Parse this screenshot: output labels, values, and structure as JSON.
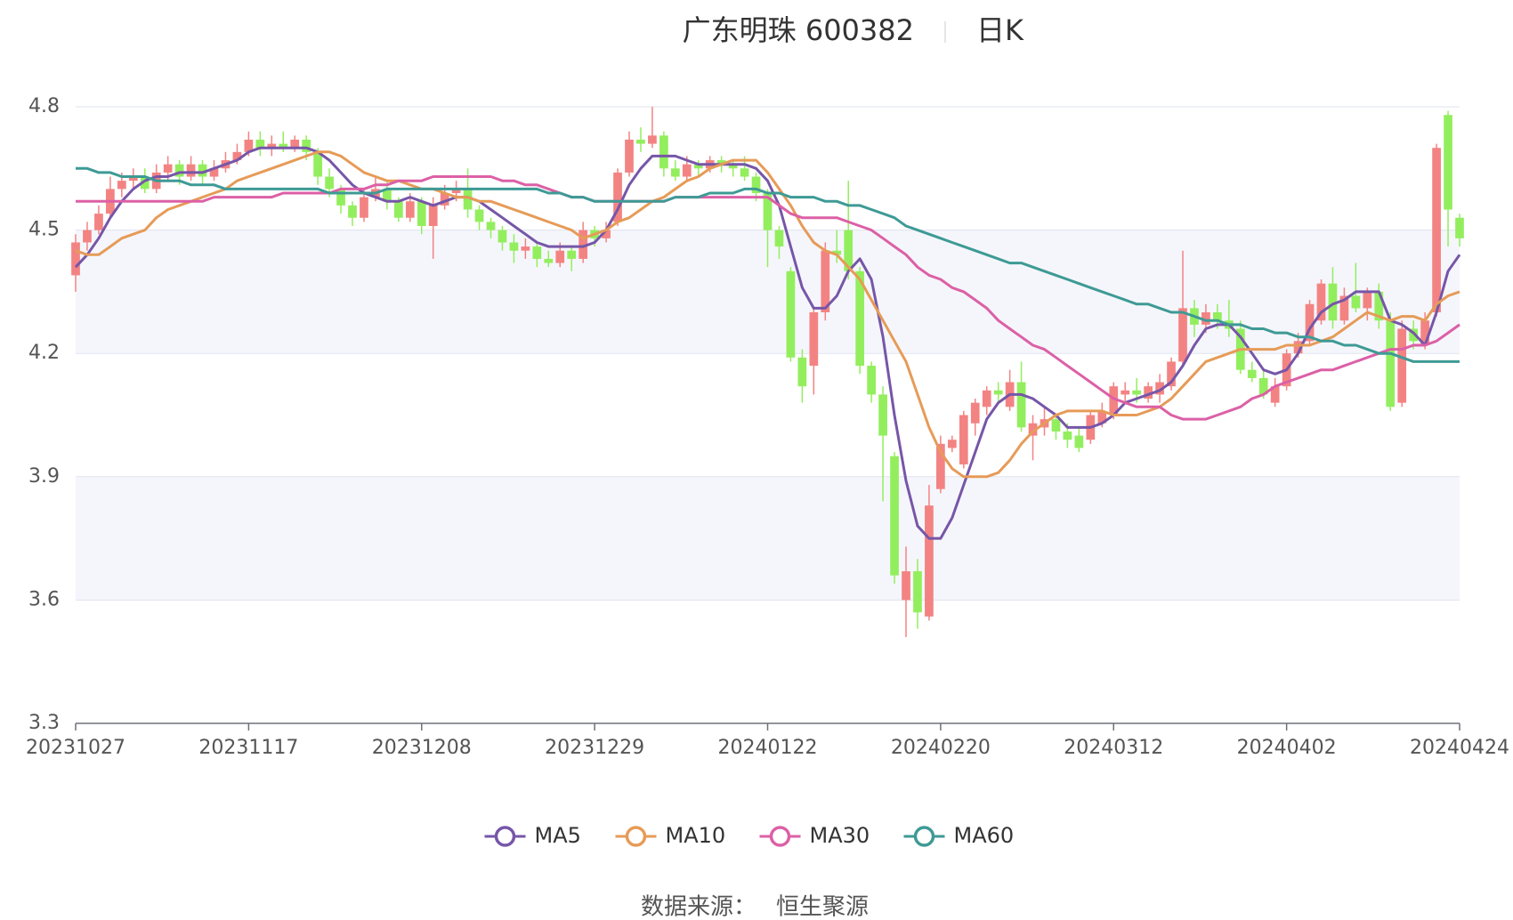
{
  "chart_data": {
    "type": "candlestick",
    "title": "广东明珠 600382",
    "subtitle": "日K",
    "source_label": "数据来源：",
    "source": "恒生聚源",
    "up_color": "#f38383",
    "down_color": "#93ee5e",
    "legend": "bottom",
    "ylim": [
      3.3,
      4.8
    ],
    "yticks": [
      3.3,
      3.6,
      3.9,
      4.2,
      4.5,
      4.8
    ],
    "grid": true,
    "categories": [
      "20231027",
      null,
      null,
      null,
      null,
      null,
      null,
      null,
      null,
      null,
      null,
      null,
      null,
      null,
      null,
      "20231117",
      null,
      null,
      null,
      null,
      null,
      null,
      null,
      null,
      null,
      null,
      null,
      null,
      null,
      null,
      "20231208",
      null,
      null,
      null,
      null,
      null,
      null,
      null,
      null,
      null,
      null,
      null,
      null,
      null,
      null,
      "20231229",
      null,
      null,
      null,
      null,
      null,
      null,
      null,
      null,
      null,
      null,
      null,
      null,
      null,
      null,
      "20240122",
      null,
      null,
      null,
      null,
      null,
      null,
      null,
      null,
      null,
      null,
      null,
      null,
      null,
      null,
      "20240220",
      null,
      null,
      null,
      null,
      null,
      null,
      null,
      null,
      null,
      null,
      null,
      null,
      null,
      null,
      "20240312",
      null,
      null,
      null,
      null,
      null,
      null,
      null,
      null,
      null,
      null,
      null,
      null,
      null,
      null,
      "20240402",
      null,
      null,
      null,
      null,
      null,
      null,
      null,
      null,
      null,
      null,
      null,
      null,
      null,
      null,
      "20240424"
    ],
    "ohlc": [
      [
        4.39,
        4.49,
        4.35,
        4.47
      ],
      [
        4.47,
        4.52,
        4.45,
        4.5
      ],
      [
        4.5,
        4.56,
        4.49,
        4.54
      ],
      [
        4.54,
        4.63,
        4.53,
        4.6
      ],
      [
        4.6,
        4.64,
        4.58,
        4.62
      ],
      [
        4.62,
        4.65,
        4.6,
        4.63
      ],
      [
        4.63,
        4.65,
        4.59,
        4.6
      ],
      [
        4.6,
        4.66,
        4.59,
        4.64
      ],
      [
        4.64,
        4.68,
        4.62,
        4.66
      ],
      [
        4.66,
        4.67,
        4.61,
        4.63
      ],
      [
        4.63,
        4.68,
        4.62,
        4.66
      ],
      [
        4.66,
        4.67,
        4.61,
        4.63
      ],
      [
        4.63,
        4.67,
        4.62,
        4.65
      ],
      [
        4.65,
        4.69,
        4.64,
        4.67
      ],
      [
        4.67,
        4.71,
        4.66,
        4.69
      ],
      [
        4.69,
        4.74,
        4.68,
        4.72
      ],
      [
        4.72,
        4.74,
        4.68,
        4.7
      ],
      [
        4.7,
        4.73,
        4.68,
        4.71
      ],
      [
        4.71,
        4.74,
        4.69,
        4.7
      ],
      [
        4.7,
        4.73,
        4.69,
        4.72
      ],
      [
        4.72,
        4.73,
        4.67,
        4.69
      ],
      [
        4.69,
        4.7,
        4.61,
        4.63
      ],
      [
        4.63,
        4.65,
        4.58,
        4.6
      ],
      [
        4.6,
        4.61,
        4.54,
        4.56
      ],
      [
        4.56,
        4.57,
        4.51,
        4.53
      ],
      [
        4.53,
        4.6,
        4.52,
        4.58
      ],
      [
        4.58,
        4.63,
        4.57,
        4.6
      ],
      [
        4.6,
        4.62,
        4.55,
        4.57
      ],
      [
        4.57,
        4.58,
        4.52,
        4.53
      ],
      [
        4.53,
        4.59,
        4.52,
        4.57
      ],
      [
        4.57,
        4.58,
        4.49,
        4.51
      ],
      [
        4.51,
        4.58,
        4.43,
        4.56
      ],
      [
        4.56,
        4.61,
        4.55,
        4.59
      ],
      [
        4.59,
        4.62,
        4.57,
        4.6
      ],
      [
        4.6,
        4.65,
        4.53,
        4.55
      ],
      [
        4.55,
        4.56,
        4.5,
        4.52
      ],
      [
        4.52,
        4.53,
        4.48,
        4.5
      ],
      [
        4.5,
        4.51,
        4.45,
        4.47
      ],
      [
        4.47,
        4.49,
        4.42,
        4.45
      ],
      [
        4.45,
        4.48,
        4.43,
        4.46
      ],
      [
        4.46,
        4.47,
        4.41,
        4.43
      ],
      [
        4.43,
        4.45,
        4.41,
        4.42
      ],
      [
        4.42,
        4.47,
        4.41,
        4.45
      ],
      [
        4.45,
        4.46,
        4.4,
        4.43
      ],
      [
        4.43,
        4.52,
        4.42,
        4.5
      ],
      [
        4.5,
        4.51,
        4.46,
        4.48
      ],
      [
        4.48,
        4.52,
        4.47,
        4.5
      ],
      [
        4.52,
        4.65,
        4.51,
        4.64
      ],
      [
        4.64,
        4.74,
        4.63,
        4.72
      ],
      [
        4.72,
        4.75,
        4.69,
        4.71
      ],
      [
        4.71,
        4.8,
        4.7,
        4.73
      ],
      [
        4.73,
        4.74,
        4.63,
        4.65
      ],
      [
        4.65,
        4.67,
        4.62,
        4.63
      ],
      [
        4.63,
        4.68,
        4.62,
        4.66
      ],
      [
        4.66,
        4.67,
        4.63,
        4.65
      ],
      [
        4.65,
        4.68,
        4.64,
        4.67
      ],
      [
        4.67,
        4.68,
        4.64,
        4.66
      ],
      [
        4.66,
        4.67,
        4.63,
        4.65
      ],
      [
        4.65,
        4.68,
        4.62,
        4.63
      ],
      [
        4.63,
        4.64,
        4.57,
        4.59
      ],
      [
        4.59,
        4.6,
        4.41,
        4.5
      ],
      [
        4.5,
        4.51,
        4.43,
        4.46
      ],
      [
        4.4,
        4.41,
        4.18,
        4.19
      ],
      [
        4.19,
        4.21,
        4.08,
        4.12
      ],
      [
        4.17,
        4.31,
        4.1,
        4.3
      ],
      [
        4.3,
        4.47,
        4.28,
        4.45
      ],
      [
        4.45,
        4.5,
        4.42,
        4.44
      ],
      [
        4.5,
        4.62,
        4.38,
        4.4
      ],
      [
        4.4,
        4.41,
        4.15,
        4.17
      ],
      [
        4.17,
        4.18,
        4.08,
        4.1
      ],
      [
        4.1,
        4.12,
        3.84,
        4.0
      ],
      [
        3.95,
        3.96,
        3.64,
        3.66
      ],
      [
        3.6,
        3.73,
        3.51,
        3.67
      ],
      [
        3.67,
        3.7,
        3.53,
        3.57
      ],
      [
        3.56,
        3.88,
        3.55,
        3.83
      ],
      [
        3.87,
        4.0,
        3.86,
        3.98
      ],
      [
        3.97,
        4.0,
        3.96,
        3.99
      ],
      [
        3.93,
        4.06,
        3.92,
        4.05
      ],
      [
        4.03,
        4.09,
        4.0,
        4.08
      ],
      [
        4.07,
        4.12,
        4.05,
        4.11
      ],
      [
        4.11,
        4.13,
        4.08,
        4.1
      ],
      [
        4.07,
        4.16,
        4.06,
        4.13
      ],
      [
        4.13,
        4.18,
        4.01,
        4.02
      ],
      [
        4.0,
        4.05,
        3.94,
        4.03
      ],
      [
        4.02,
        4.07,
        4.0,
        4.04
      ],
      [
        4.04,
        4.05,
        3.99,
        4.01
      ],
      [
        4.01,
        4.03,
        3.97,
        3.99
      ],
      [
        4.0,
        4.02,
        3.96,
        3.97
      ],
      [
        3.99,
        4.06,
        3.98,
        4.05
      ],
      [
        4.03,
        4.08,
        4.02,
        4.06
      ],
      [
        4.05,
        4.13,
        4.04,
        4.12
      ],
      [
        4.1,
        4.13,
        4.08,
        4.11
      ],
      [
        4.11,
        4.14,
        4.08,
        4.1
      ],
      [
        4.09,
        4.13,
        4.08,
        4.12
      ],
      [
        4.1,
        4.15,
        4.08,
        4.13
      ],
      [
        4.12,
        4.19,
        4.11,
        4.18
      ],
      [
        4.18,
        4.45,
        4.17,
        4.31
      ],
      [
        4.31,
        4.33,
        4.24,
        4.27
      ],
      [
        4.27,
        4.32,
        4.25,
        4.3
      ],
      [
        4.3,
        4.32,
        4.26,
        4.28
      ],
      [
        4.28,
        4.33,
        4.24,
        4.26
      ],
      [
        4.26,
        4.28,
        4.15,
        4.16
      ],
      [
        4.16,
        4.18,
        4.13,
        4.14
      ],
      [
        4.14,
        4.16,
        4.09,
        4.1
      ],
      [
        4.08,
        4.14,
        4.07,
        4.12
      ],
      [
        4.12,
        4.21,
        4.11,
        4.2
      ],
      [
        4.2,
        4.25,
        4.19,
        4.23
      ],
      [
        4.23,
        4.33,
        4.22,
        4.32
      ],
      [
        4.28,
        4.38,
        4.27,
        4.37
      ],
      [
        4.37,
        4.41,
        4.26,
        4.28
      ],
      [
        4.28,
        4.36,
        4.27,
        4.34
      ],
      [
        4.34,
        4.42,
        4.3,
        4.31
      ],
      [
        4.31,
        4.36,
        4.28,
        4.35
      ],
      [
        4.35,
        4.37,
        4.26,
        4.28
      ],
      [
        4.28,
        4.3,
        4.06,
        4.07
      ],
      [
        4.08,
        4.28,
        4.07,
        4.26
      ],
      [
        4.26,
        4.28,
        4.21,
        4.23
      ],
      [
        4.22,
        4.3,
        4.21,
        4.28
      ],
      [
        4.3,
        4.71,
        4.29,
        4.7
      ],
      [
        4.78,
        4.79,
        4.46,
        4.55
      ],
      [
        4.53,
        4.54,
        4.46,
        4.48
      ]
    ],
    "series": [
      {
        "name": "MA5",
        "color": "#7656a8",
        "values": [
          4.41,
          4.44,
          4.48,
          4.53,
          4.57,
          4.6,
          4.62,
          4.63,
          4.63,
          4.64,
          4.64,
          4.64,
          4.65,
          4.66,
          4.67,
          4.69,
          4.7,
          4.7,
          4.7,
          4.7,
          4.7,
          4.69,
          4.67,
          4.64,
          4.61,
          4.59,
          4.58,
          4.57,
          4.57,
          4.58,
          4.57,
          4.56,
          4.57,
          4.58,
          4.58,
          4.57,
          4.55,
          4.53,
          4.51,
          4.49,
          4.47,
          4.46,
          4.46,
          4.46,
          4.46,
          4.47,
          4.5,
          4.55,
          4.61,
          4.65,
          4.68,
          4.68,
          4.68,
          4.67,
          4.66,
          4.66,
          4.66,
          4.66,
          4.66,
          4.65,
          4.62,
          4.56,
          4.46,
          4.36,
          4.31,
          4.31,
          4.34,
          4.4,
          4.43,
          4.38,
          4.24,
          4.05,
          3.89,
          3.78,
          3.75,
          3.75,
          3.8,
          3.88,
          3.96,
          4.04,
          4.08,
          4.1,
          4.1,
          4.09,
          4.07,
          4.05,
          4.02,
          4.02,
          4.02,
          4.03,
          4.05,
          4.08,
          4.09,
          4.1,
          4.11,
          4.13,
          4.17,
          4.22,
          4.26,
          4.27,
          4.27,
          4.24,
          4.2,
          4.16,
          4.15,
          4.16,
          4.2,
          4.26,
          4.3,
          4.32,
          4.33,
          4.35,
          4.35,
          4.35,
          4.28,
          4.27,
          4.25,
          4.22,
          4.3,
          4.4,
          4.44
        ]
      },
      {
        "name": "MA10",
        "color": "#e69b58",
        "values": [
          4.45,
          4.44,
          4.44,
          4.46,
          4.48,
          4.49,
          4.5,
          4.53,
          4.55,
          4.56,
          4.57,
          4.58,
          4.59,
          4.6,
          4.62,
          4.63,
          4.64,
          4.65,
          4.66,
          4.67,
          4.68,
          4.69,
          4.69,
          4.68,
          4.66,
          4.64,
          4.63,
          4.62,
          4.62,
          4.61,
          4.6,
          4.6,
          4.59,
          4.58,
          4.58,
          4.57,
          4.57,
          4.56,
          4.55,
          4.54,
          4.53,
          4.52,
          4.51,
          4.5,
          4.48,
          4.49,
          4.5,
          4.52,
          4.53,
          4.55,
          4.57,
          4.58,
          4.6,
          4.62,
          4.63,
          4.65,
          4.66,
          4.67,
          4.67,
          4.67,
          4.64,
          4.6,
          4.56,
          4.51,
          4.47,
          4.45,
          4.44,
          4.41,
          4.38,
          4.33,
          4.28,
          4.23,
          4.18,
          4.1,
          4.02,
          3.96,
          3.92,
          3.9,
          3.9,
          3.9,
          3.91,
          3.94,
          3.98,
          4.01,
          4.03,
          4.05,
          4.06,
          4.06,
          4.06,
          4.06,
          4.05,
          4.05,
          4.05,
          4.06,
          4.07,
          4.09,
          4.12,
          4.15,
          4.18,
          4.19,
          4.2,
          4.21,
          4.21,
          4.21,
          4.21,
          4.22,
          4.22,
          4.22,
          4.23,
          4.24,
          4.26,
          4.28,
          4.3,
          4.29,
          4.28,
          4.29,
          4.29,
          4.28,
          4.32,
          4.34,
          4.35
        ]
      },
      {
        "name": "MA30",
        "color": "#dc60a6",
        "values": [
          4.57,
          4.57,
          4.57,
          4.57,
          4.57,
          4.57,
          4.57,
          4.57,
          4.57,
          4.57,
          4.57,
          4.57,
          4.58,
          4.58,
          4.58,
          4.58,
          4.58,
          4.58,
          4.59,
          4.59,
          4.59,
          4.59,
          4.59,
          4.6,
          4.6,
          4.6,
          4.61,
          4.61,
          4.62,
          4.62,
          4.62,
          4.63,
          4.63,
          4.63,
          4.63,
          4.63,
          4.63,
          4.62,
          4.62,
          4.61,
          4.61,
          4.6,
          4.59,
          4.58,
          4.58,
          4.57,
          4.57,
          4.57,
          4.57,
          4.57,
          4.57,
          4.57,
          4.58,
          4.58,
          4.58,
          4.58,
          4.58,
          4.58,
          4.58,
          4.58,
          4.58,
          4.56,
          4.54,
          4.53,
          4.53,
          4.53,
          4.53,
          4.52,
          4.51,
          4.5,
          4.48,
          4.46,
          4.44,
          4.41,
          4.39,
          4.38,
          4.36,
          4.35,
          4.33,
          4.31,
          4.28,
          4.26,
          4.24,
          4.22,
          4.21,
          4.19,
          4.17,
          4.15,
          4.13,
          4.11,
          4.09,
          4.08,
          4.07,
          4.07,
          4.07,
          4.05,
          4.04,
          4.04,
          4.04,
          4.05,
          4.06,
          4.07,
          4.09,
          4.1,
          4.12,
          4.13,
          4.14,
          4.15,
          4.16,
          4.16,
          4.17,
          4.18,
          4.19,
          4.2,
          4.21,
          4.21,
          4.22,
          4.22,
          4.23,
          4.25,
          4.27
        ]
      },
      {
        "name": "MA60",
        "color": "#3e9a95",
        "values": [
          4.65,
          4.65,
          4.64,
          4.64,
          4.63,
          4.63,
          4.63,
          4.62,
          4.62,
          4.62,
          4.61,
          4.61,
          4.61,
          4.6,
          4.6,
          4.6,
          4.6,
          4.6,
          4.6,
          4.6,
          4.6,
          4.6,
          4.59,
          4.59,
          4.59,
          4.59,
          4.59,
          4.6,
          4.6,
          4.6,
          4.6,
          4.6,
          4.6,
          4.6,
          4.6,
          4.6,
          4.6,
          4.6,
          4.6,
          4.6,
          4.6,
          4.59,
          4.59,
          4.58,
          4.58,
          4.57,
          4.57,
          4.57,
          4.57,
          4.57,
          4.57,
          4.57,
          4.58,
          4.58,
          4.58,
          4.59,
          4.59,
          4.59,
          4.6,
          4.6,
          4.59,
          4.59,
          4.58,
          4.58,
          4.58,
          4.57,
          4.57,
          4.56,
          4.56,
          4.55,
          4.54,
          4.53,
          4.51,
          4.5,
          4.49,
          4.48,
          4.47,
          4.46,
          4.45,
          4.44,
          4.43,
          4.42,
          4.42,
          4.41,
          4.4,
          4.39,
          4.38,
          4.37,
          4.36,
          4.35,
          4.34,
          4.33,
          4.32,
          4.32,
          4.31,
          4.3,
          4.3,
          4.29,
          4.28,
          4.28,
          4.27,
          4.27,
          4.26,
          4.26,
          4.25,
          4.25,
          4.24,
          4.24,
          4.23,
          4.23,
          4.22,
          4.22,
          4.21,
          4.2,
          4.2,
          4.19,
          4.18,
          4.18,
          4.18,
          4.18,
          4.18
        ]
      }
    ]
  }
}
